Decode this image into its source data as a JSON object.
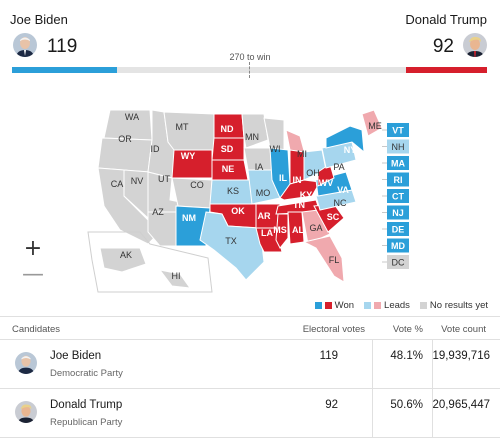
{
  "header": {
    "biden_name": "Joe Biden",
    "trump_name": "Donald Trump",
    "biden_ev": "119",
    "trump_ev": "92",
    "threshold": "270 to win"
  },
  "bar": {
    "total_ev": 538,
    "biden_ev": 119,
    "trump_ev": 92,
    "biden_color": "#2b9fd9",
    "trump_color": "#d61f2c"
  },
  "colors": {
    "dem_won": "#2b9fd9",
    "rep_won": "#d61f2c",
    "dem_lead": "#a6d6ee",
    "rep_lead": "#f0a9ae",
    "no_results": "#d3d3d3"
  },
  "states": {
    "WA": "none",
    "OR": "none",
    "CA": "none",
    "NV": "none",
    "ID": "none",
    "MT": "none",
    "WY": "rep_won",
    "UT": "none",
    "AZ": "none",
    "CO": "none",
    "NM": "dem_won",
    "ND": "rep_won",
    "SD": "rep_won",
    "NE": "rep_won",
    "KS": "dem_lead",
    "OK": "rep_won",
    "TX": "dem_lead",
    "MN": "none",
    "IA": "none",
    "MO": "dem_lead",
    "AR": "rep_won",
    "LA": "rep_won",
    "WI": "none",
    "IL": "dem_won",
    "MI": "rep_lead",
    "IN": "rep_won",
    "OH": "dem_lead",
    "KY": "rep_won",
    "TN": "rep_won",
    "MS": "rep_won",
    "AL": "rep_won",
    "GA": "rep_lead",
    "FL": "rep_lead",
    "SC": "rep_won",
    "NC": "dem_lead",
    "VA": "dem_won",
    "WV": "rep_won",
    "PA": "dem_lead",
    "NY": "dem_won",
    "ME": "rep_lead",
    "AK": "none",
    "HI": "none",
    "VT": "dem_won",
    "NH": "dem_lead",
    "MA": "dem_won",
    "RI": "dem_won",
    "CT": "dem_won",
    "NJ": "dem_won",
    "DE": "dem_won",
    "MD": "dem_won",
    "DC": "none"
  },
  "small_states": [
    {
      "abbr": "VT",
      "status": "dem_won"
    },
    {
      "abbr": "NH",
      "status": "dem_lead"
    },
    {
      "abbr": "MA",
      "status": "dem_won"
    },
    {
      "abbr": "RI",
      "status": "dem_won"
    },
    {
      "abbr": "CT",
      "status": "dem_won"
    },
    {
      "abbr": "NJ",
      "status": "dem_won"
    },
    {
      "abbr": "DE",
      "status": "dem_won"
    },
    {
      "abbr": "MD",
      "status": "dem_won"
    },
    {
      "abbr": "DC",
      "status": "none"
    }
  ],
  "zoom": {
    "in_label": "+",
    "out_label": "—"
  },
  "legend": {
    "won": "Won",
    "leads": "Leads",
    "no_results": "No results yet"
  },
  "table": {
    "headers": {
      "candidates": "Candidates",
      "electoral_votes": "Electoral votes",
      "vote_pct": "Vote %",
      "vote_count": "Vote count"
    },
    "rows": [
      {
        "name": "Joe Biden",
        "party": "Democratic Party",
        "ev": "119",
        "pct": "48.1%",
        "count": "19,939,716"
      },
      {
        "name": "Donald Trump",
        "party": "Republican Party",
        "ev": "92",
        "pct": "50.6%",
        "count": "20,965,447"
      }
    ]
  }
}
